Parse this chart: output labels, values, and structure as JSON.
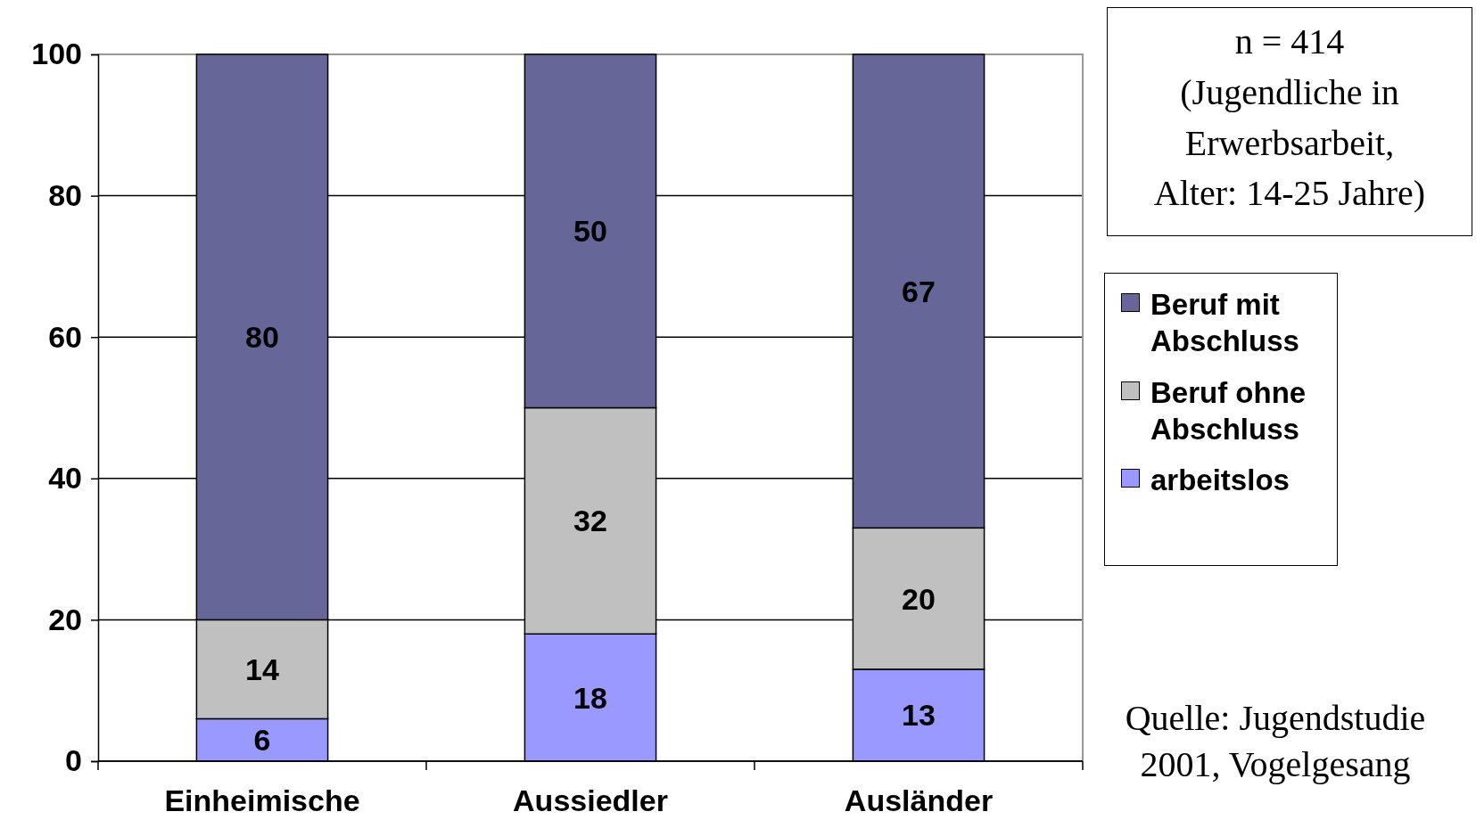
{
  "chart_data": {
    "type": "bar",
    "stacked": true,
    "categories": [
      "Einheimische",
      "Aussiedler",
      "Ausländer"
    ],
    "series": [
      {
        "name": "arbeitslos",
        "color": "#9999ff",
        "values": [
          6,
          18,
          13
        ]
      },
      {
        "name": "Beruf ohne Abschluss",
        "color": "#c0c0c0",
        "values": [
          14,
          32,
          20
        ]
      },
      {
        "name": "Beruf mit Abschluss",
        "color": "#666699",
        "values": [
          80,
          50,
          67
        ]
      }
    ],
    "ylim": [
      0,
      100
    ],
    "yticks": [
      0,
      20,
      40,
      60,
      80,
      100
    ],
    "grid": "y",
    "legend": "right",
    "data_labels": true,
    "annotations": [
      "n = 414\n(Jugendliche in\nErwerbsarbeit,\nAlter: 14-25 Jahre)",
      "Quelle: Jugendstudie\n2001, Vogelgesang"
    ]
  }
}
